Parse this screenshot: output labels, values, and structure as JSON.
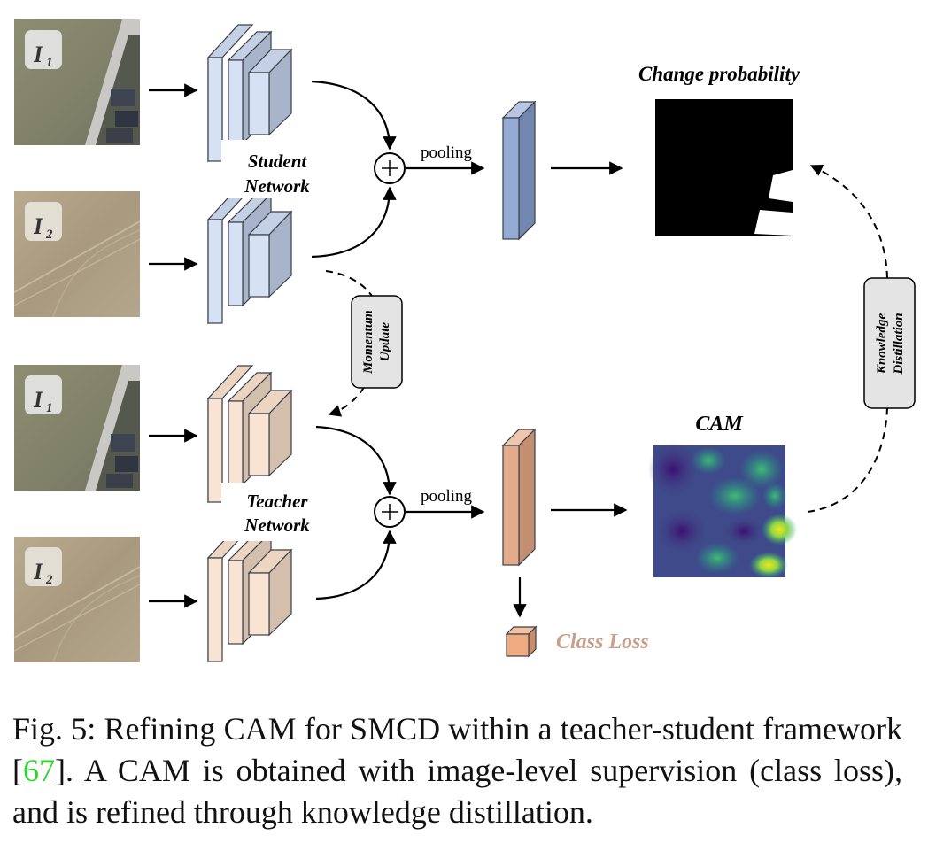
{
  "labels": {
    "i1_main": "I",
    "i1_sub": "1",
    "i2_main": "I",
    "i2_sub": "2",
    "student_line1": "Student",
    "student_line2": "Network",
    "teacher_line1": "Teacher",
    "teacher_line2": "Network",
    "pooling": "pooling",
    "change_probability": "Change probability",
    "cam": "CAM",
    "momentum_line1": "Momentum",
    "momentum_line2": "Update",
    "knowledge_line1": "Knowledge",
    "knowledge_line2": "Distillation",
    "class_loss": "Class Loss"
  },
  "caption": {
    "prefix": "Fig. 5: Refining CAM for SMCD within a teacher-student framework [",
    "ref": "67",
    "suffix": "]. A CAM is obtained with image-level supervision (class loss), and is refined through knowledge distillation."
  },
  "colors": {
    "student_front": "#d6e2f4",
    "student_side": "#a7b4ca",
    "student_vector": "#93aad4",
    "teacher_front": "#f9e4d3",
    "teacher_side": "#d4bfad",
    "teacher_vector": "#e3ab89",
    "class_loss_text": "#c8a08a",
    "citation": "#2fd32f"
  }
}
